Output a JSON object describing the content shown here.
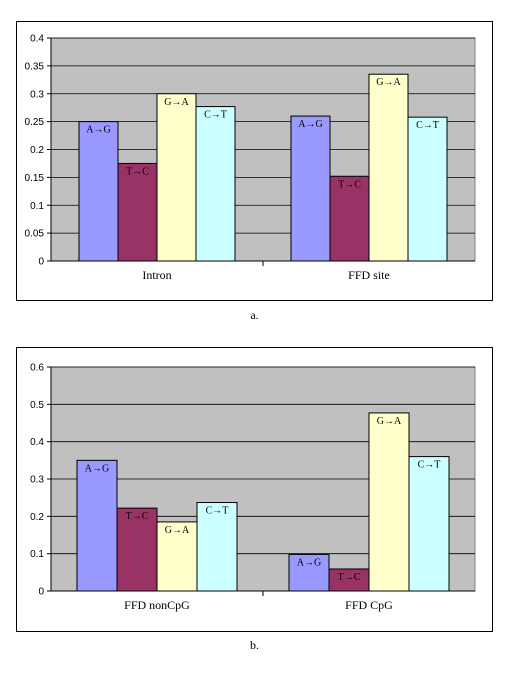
{
  "chart_data": [
    {
      "type": "bar",
      "categories": [
        "Intron",
        "FFD site"
      ],
      "series": [
        {
          "label": "A→G",
          "values": [
            0.25,
            0.26
          ],
          "color": "#9999ff"
        },
        {
          "label": "T→C",
          "values": [
            0.175,
            0.152
          ],
          "color": "#993366"
        },
        {
          "label": "G→A",
          "values": [
            0.3,
            0.335
          ],
          "color": "#ffffcc"
        },
        {
          "label": "C→T",
          "values": [
            0.277,
            0.258
          ],
          "color": "#ccffff"
        }
      ],
      "ylim": [
        0,
        0.4
      ],
      "yticks": [
        "0",
        "0.05",
        "0.1",
        "0.15",
        "0.2",
        "0.25",
        "0.3",
        "0.35",
        "0.4"
      ],
      "plot_background": "#c0c0c0",
      "grid": true,
      "legend": "none"
    },
    {
      "type": "bar",
      "categories": [
        "FFD nonCpG",
        "FFD CpG"
      ],
      "series": [
        {
          "label": "A→G",
          "values": [
            0.35,
            0.098
          ],
          "color": "#9999ff"
        },
        {
          "label": "T→C",
          "values": [
            0.222,
            0.059
          ],
          "color": "#993366"
        },
        {
          "label": "G→A",
          "values": [
            0.185,
            0.477
          ],
          "color": "#ffffcc"
        },
        {
          "label": "C→T",
          "values": [
            0.237,
            0.36
          ],
          "color": "#ccffff"
        }
      ],
      "ylim": [
        0,
        0.6
      ],
      "yticks": [
        "0",
        "0.1",
        "0.2",
        "0.3",
        "0.4",
        "0.5",
        "0.6"
      ],
      "plot_background": "#c0c0c0",
      "grid": true,
      "legend": "none"
    }
  ],
  "captions": [
    "a.",
    "b."
  ]
}
